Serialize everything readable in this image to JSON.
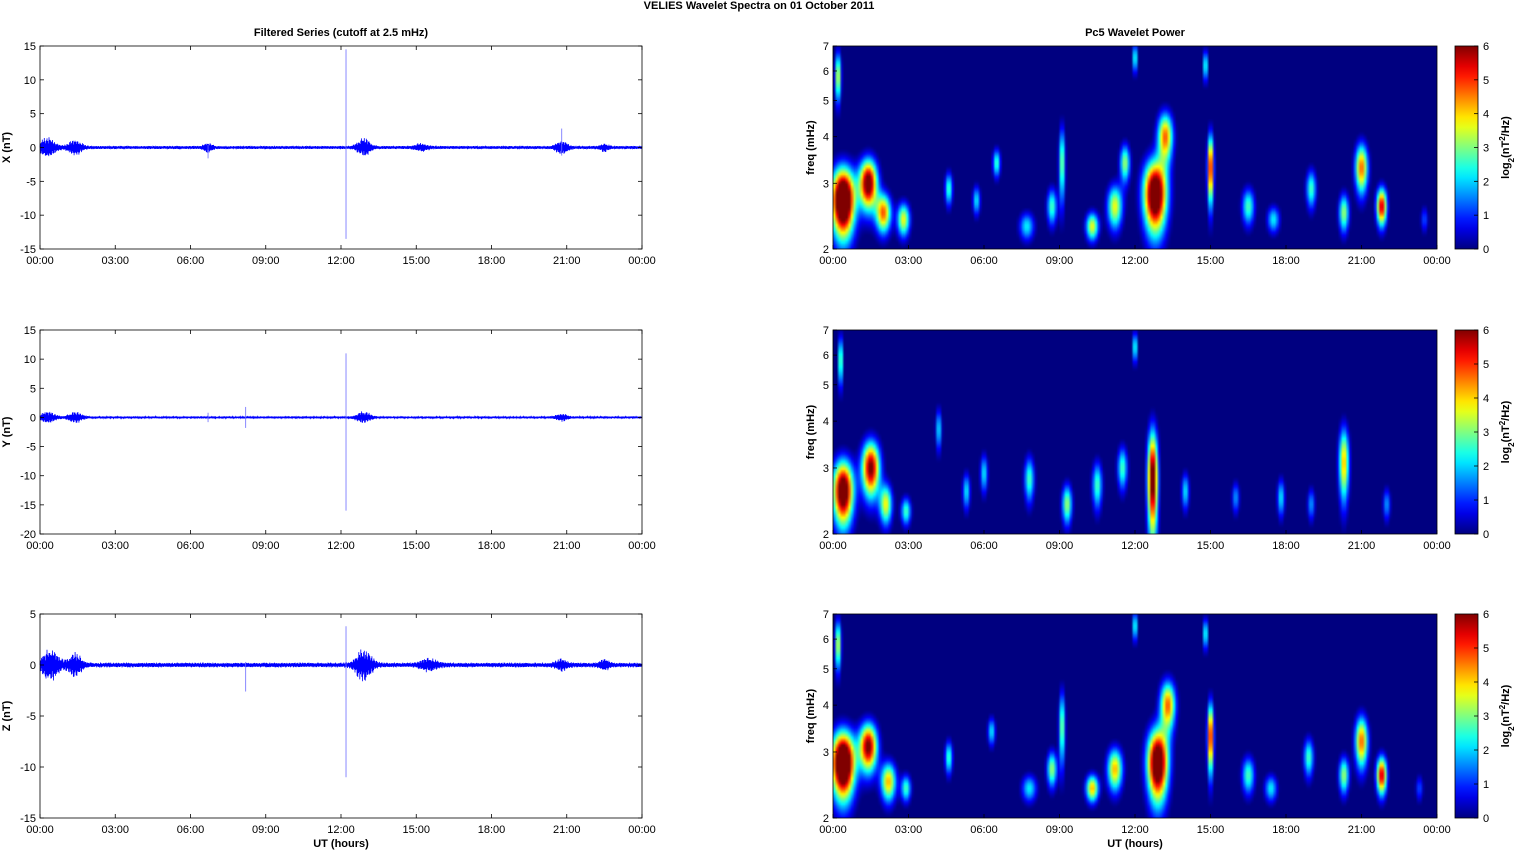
{
  "figure": {
    "suptitle": "VELIES Wavelet Spectra on 01 October   2011"
  },
  "chart_data": [
    {
      "type": "line",
      "title": "Filtered Series (cutoff at 2.5 mHz)",
      "ylabel": "X (nT)",
      "xlabel": "",
      "x_ticks": [
        "00:00",
        "03:00",
        "06:00",
        "09:00",
        "12:00",
        "15:00",
        "18:00",
        "21:00",
        "00:00"
      ],
      "xlim_hours": [
        0,
        24
      ],
      "ylim": [
        -15,
        15
      ],
      "y_ticks": [
        -15,
        -10,
        -5,
        0,
        5,
        10,
        15
      ],
      "line_color": "#0000ff",
      "envelope": {
        "base_amplitude": 0.25,
        "wave_packets": [
          {
            "t": 0.3,
            "amp": 1.5,
            "width": 0.35
          },
          {
            "t": 1.4,
            "amp": 1.1,
            "width": 0.3
          },
          {
            "t": 6.7,
            "amp": 0.6,
            "width": 0.2
          },
          {
            "t": 12.9,
            "amp": 1.3,
            "width": 0.3
          },
          {
            "t": 15.2,
            "amp": 0.5,
            "width": 0.3
          },
          {
            "t": 20.8,
            "amp": 1.0,
            "width": 0.25
          },
          {
            "t": 22.5,
            "amp": 0.5,
            "width": 0.2
          }
        ],
        "spikes": [
          {
            "t": 12.2,
            "min": -13.5,
            "max": 14.5
          },
          {
            "t": 6.7,
            "min": -1.6,
            "max": 0.4
          },
          {
            "t": 20.8,
            "min": -1.2,
            "max": 2.8
          }
        ]
      }
    },
    {
      "type": "line",
      "title": "",
      "ylabel": "Y (nT)",
      "xlabel": "",
      "x_ticks": [
        "00:00",
        "03:00",
        "06:00",
        "09:00",
        "12:00",
        "15:00",
        "18:00",
        "21:00",
        "00:00"
      ],
      "xlim_hours": [
        0,
        24
      ],
      "ylim": [
        -20,
        15
      ],
      "y_ticks": [
        -20,
        -15,
        -10,
        -5,
        0,
        5,
        10,
        15
      ],
      "line_color": "#0000ff",
      "envelope": {
        "base_amplitude": 0.2,
        "wave_packets": [
          {
            "t": 0.3,
            "amp": 0.9,
            "width": 0.35
          },
          {
            "t": 1.4,
            "amp": 0.9,
            "width": 0.3
          },
          {
            "t": 12.9,
            "amp": 1.0,
            "width": 0.3
          },
          {
            "t": 20.8,
            "amp": 0.6,
            "width": 0.25
          }
        ],
        "spikes": [
          {
            "t": 12.2,
            "min": -16,
            "max": 11
          },
          {
            "t": 8.2,
            "min": -1.8,
            "max": 1.8
          },
          {
            "t": 6.7,
            "min": -0.8,
            "max": 0.8
          }
        ]
      }
    },
    {
      "type": "line",
      "title": "",
      "ylabel": "Z (nT)",
      "xlabel": "UT (hours)",
      "x_ticks": [
        "00:00",
        "03:00",
        "06:00",
        "09:00",
        "12:00",
        "15:00",
        "18:00",
        "21:00",
        "00:00"
      ],
      "xlim_hours": [
        0,
        24
      ],
      "ylim": [
        -15,
        5
      ],
      "y_ticks": [
        -15,
        -10,
        -5,
        0,
        5
      ],
      "line_color": "#0000ff",
      "envelope": {
        "base_amplitude": 0.25,
        "wave_packets": [
          {
            "t": 0.4,
            "amp": 1.5,
            "width": 0.4
          },
          {
            "t": 1.4,
            "amp": 1.1,
            "width": 0.3
          },
          {
            "t": 12.9,
            "amp": 1.6,
            "width": 0.35
          },
          {
            "t": 15.5,
            "amp": 0.5,
            "width": 0.4
          },
          {
            "t": 20.8,
            "amp": 0.5,
            "width": 0.25
          },
          {
            "t": 22.5,
            "amp": 0.5,
            "width": 0.2
          }
        ],
        "spikes": [
          {
            "t": 12.2,
            "min": -11,
            "max": 3.8
          },
          {
            "t": 8.2,
            "min": -2.6,
            "max": 0.3
          }
        ]
      }
    },
    {
      "type": "heatmap",
      "title": "Pc5 Wavelet Power",
      "ylabel": "freq (mHz)",
      "xlabel": "",
      "x_ticks": [
        "00:00",
        "03:00",
        "06:00",
        "09:00",
        "12:00",
        "15:00",
        "18:00",
        "21:00",
        "00:00"
      ],
      "xlim_hours": [
        0,
        24
      ],
      "y_scale": "log",
      "ylim": [
        2,
        7
      ],
      "y_ticks": [
        2,
        3,
        4,
        5,
        6,
        7
      ],
      "colorbar": {
        "label": "log2(nT2/Hz)",
        "range": [
          0,
          6
        ],
        "ticks": [
          0,
          1,
          2,
          3,
          4,
          5,
          6
        ],
        "colormap": "jet"
      },
      "blobs": [
        {
          "t": 0.4,
          "f": 2.7,
          "st": 0.45,
          "sf": 0.55,
          "p": 9
        },
        {
          "t": 1.4,
          "f": 3.0,
          "st": 0.35,
          "sf": 0.45,
          "p": 7
        },
        {
          "t": 2.0,
          "f": 2.5,
          "st": 0.3,
          "sf": 0.3,
          "p": 5
        },
        {
          "t": 2.8,
          "f": 2.4,
          "st": 0.25,
          "sf": 0.25,
          "p": 4
        },
        {
          "t": 0.2,
          "f": 5.8,
          "st": 0.12,
          "sf": 0.9,
          "p": 4
        },
        {
          "t": 4.6,
          "f": 2.9,
          "st": 0.15,
          "sf": 0.3,
          "p": 3
        },
        {
          "t": 5.7,
          "f": 2.7,
          "st": 0.15,
          "sf": 0.25,
          "p": 2.5
        },
        {
          "t": 6.5,
          "f": 3.4,
          "st": 0.15,
          "sf": 0.3,
          "p": 3
        },
        {
          "t": 7.7,
          "f": 2.3,
          "st": 0.3,
          "sf": 0.2,
          "p": 2.5
        },
        {
          "t": 8.7,
          "f": 2.6,
          "st": 0.2,
          "sf": 0.3,
          "p": 3
        },
        {
          "t": 9.1,
          "f": 3.4,
          "st": 0.12,
          "sf": 0.8,
          "p": 3.5
        },
        {
          "t": 10.3,
          "f": 2.3,
          "st": 0.25,
          "sf": 0.2,
          "p": 4
        },
        {
          "t": 11.2,
          "f": 2.6,
          "st": 0.3,
          "sf": 0.35,
          "p": 4
        },
        {
          "t": 11.6,
          "f": 3.4,
          "st": 0.2,
          "sf": 0.4,
          "p": 3.5
        },
        {
          "t": 12.8,
          "f": 2.8,
          "st": 0.45,
          "sf": 0.6,
          "p": 8
        },
        {
          "t": 13.2,
          "f": 4.0,
          "st": 0.3,
          "sf": 0.6,
          "p": 5
        },
        {
          "t": 15.0,
          "f": 3.3,
          "st": 0.12,
          "sf": 0.7,
          "p": 6
        },
        {
          "t": 16.5,
          "f": 2.6,
          "st": 0.25,
          "sf": 0.3,
          "p": 3
        },
        {
          "t": 17.5,
          "f": 2.4,
          "st": 0.25,
          "sf": 0.2,
          "p": 2.5
        },
        {
          "t": 19.0,
          "f": 2.9,
          "st": 0.2,
          "sf": 0.35,
          "p": 3
        },
        {
          "t": 20.3,
          "f": 2.5,
          "st": 0.2,
          "sf": 0.3,
          "p": 3.5
        },
        {
          "t": 21.0,
          "f": 3.3,
          "st": 0.25,
          "sf": 0.5,
          "p": 5
        },
        {
          "t": 21.8,
          "f": 2.6,
          "st": 0.2,
          "sf": 0.3,
          "p": 6
        },
        {
          "t": 23.5,
          "f": 2.4,
          "st": 0.15,
          "sf": 0.2,
          "p": 1.5
        },
        {
          "t": 12.0,
          "f": 6.5,
          "st": 0.1,
          "sf": 0.6,
          "p": 3
        },
        {
          "t": 14.8,
          "f": 6.2,
          "st": 0.1,
          "sf": 0.6,
          "p": 3
        }
      ]
    },
    {
      "type": "heatmap",
      "title": "",
      "ylabel": "freq (mHz)",
      "xlabel": "",
      "x_ticks": [
        "00:00",
        "03:00",
        "06:00",
        "09:00",
        "12:00",
        "15:00",
        "18:00",
        "21:00",
        "00:00"
      ],
      "xlim_hours": [
        0,
        24
      ],
      "y_scale": "log",
      "ylim": [
        2,
        7
      ],
      "y_ticks": [
        2,
        3,
        4,
        5,
        6,
        7
      ],
      "colorbar": {
        "label": "log2(nT2/Hz)",
        "range": [
          0,
          6
        ],
        "ticks": [
          0,
          1,
          2,
          3,
          4,
          5,
          6
        ],
        "colormap": "jet"
      },
      "blobs": [
        {
          "t": 0.4,
          "f": 2.6,
          "st": 0.4,
          "sf": 0.5,
          "p": 7.5
        },
        {
          "t": 1.5,
          "f": 3.0,
          "st": 0.35,
          "sf": 0.5,
          "p": 6.5
        },
        {
          "t": 2.1,
          "f": 2.4,
          "st": 0.25,
          "sf": 0.3,
          "p": 4
        },
        {
          "t": 2.9,
          "f": 2.3,
          "st": 0.2,
          "sf": 0.2,
          "p": 3
        },
        {
          "t": 4.2,
          "f": 3.8,
          "st": 0.12,
          "sf": 0.5,
          "p": 2.5
        },
        {
          "t": 5.3,
          "f": 2.6,
          "st": 0.15,
          "sf": 0.3,
          "p": 2.5
        },
        {
          "t": 6.0,
          "f": 2.9,
          "st": 0.15,
          "sf": 0.35,
          "p": 2.5
        },
        {
          "t": 7.8,
          "f": 2.8,
          "st": 0.2,
          "sf": 0.4,
          "p": 3
        },
        {
          "t": 9.3,
          "f": 2.4,
          "st": 0.2,
          "sf": 0.3,
          "p": 3.5
        },
        {
          "t": 10.5,
          "f": 2.7,
          "st": 0.2,
          "sf": 0.4,
          "p": 3
        },
        {
          "t": 11.5,
          "f": 3.0,
          "st": 0.2,
          "sf": 0.4,
          "p": 3
        },
        {
          "t": 12.7,
          "f": 2.8,
          "st": 0.2,
          "sf": 0.9,
          "p": 7
        },
        {
          "t": 14.0,
          "f": 2.6,
          "st": 0.15,
          "sf": 0.3,
          "p": 2.5
        },
        {
          "t": 16.0,
          "f": 2.5,
          "st": 0.15,
          "sf": 0.25,
          "p": 2
        },
        {
          "t": 17.8,
          "f": 2.5,
          "st": 0.15,
          "sf": 0.3,
          "p": 2.5
        },
        {
          "t": 19.0,
          "f": 2.4,
          "st": 0.15,
          "sf": 0.25,
          "p": 2
        },
        {
          "t": 20.3,
          "f": 3.1,
          "st": 0.2,
          "sf": 0.7,
          "p": 4.5
        },
        {
          "t": 22.0,
          "f": 2.4,
          "st": 0.15,
          "sf": 0.25,
          "p": 2
        },
        {
          "t": 0.3,
          "f": 5.8,
          "st": 0.1,
          "sf": 0.9,
          "p": 3.5
        },
        {
          "t": 12.0,
          "f": 6.3,
          "st": 0.1,
          "sf": 0.6,
          "p": 3
        }
      ]
    },
    {
      "type": "heatmap",
      "title": "",
      "ylabel": "freq (mHz)",
      "xlabel": "UT (hours)",
      "x_ticks": [
        "00:00",
        "03:00",
        "06:00",
        "09:00",
        "12:00",
        "15:00",
        "18:00",
        "21:00",
        "00:00"
      ],
      "xlim_hours": [
        0,
        24
      ],
      "y_scale": "log",
      "ylim": [
        2,
        7
      ],
      "y_ticks": [
        2,
        3,
        4,
        5,
        6,
        7
      ],
      "colorbar": {
        "label": "log2(nT2/Hz)",
        "range": [
          0,
          6
        ],
        "ticks": [
          0,
          1,
          2,
          3,
          4,
          5,
          6
        ],
        "colormap": "jet"
      },
      "blobs": [
        {
          "t": 0.4,
          "f": 2.8,
          "st": 0.45,
          "sf": 0.55,
          "p": 9
        },
        {
          "t": 1.4,
          "f": 3.1,
          "st": 0.35,
          "sf": 0.45,
          "p": 6.5
        },
        {
          "t": 2.2,
          "f": 2.5,
          "st": 0.3,
          "sf": 0.3,
          "p": 4.5
        },
        {
          "t": 2.9,
          "f": 2.4,
          "st": 0.2,
          "sf": 0.2,
          "p": 3
        },
        {
          "t": 0.2,
          "f": 5.8,
          "st": 0.12,
          "sf": 0.9,
          "p": 4
        },
        {
          "t": 4.6,
          "f": 2.9,
          "st": 0.15,
          "sf": 0.3,
          "p": 3
        },
        {
          "t": 6.3,
          "f": 3.4,
          "st": 0.15,
          "sf": 0.3,
          "p": 2.5
        },
        {
          "t": 7.8,
          "f": 2.4,
          "st": 0.3,
          "sf": 0.2,
          "p": 2.5
        },
        {
          "t": 8.7,
          "f": 2.7,
          "st": 0.2,
          "sf": 0.3,
          "p": 3.5
        },
        {
          "t": 9.1,
          "f": 3.5,
          "st": 0.12,
          "sf": 0.8,
          "p": 3.5
        },
        {
          "t": 10.3,
          "f": 2.4,
          "st": 0.25,
          "sf": 0.2,
          "p": 4.5
        },
        {
          "t": 11.2,
          "f": 2.7,
          "st": 0.3,
          "sf": 0.35,
          "p": 4.5
        },
        {
          "t": 12.9,
          "f": 2.8,
          "st": 0.4,
          "sf": 0.6,
          "p": 8
        },
        {
          "t": 13.3,
          "f": 4.0,
          "st": 0.3,
          "sf": 0.6,
          "p": 5
        },
        {
          "t": 15.0,
          "f": 3.3,
          "st": 0.12,
          "sf": 0.7,
          "p": 6
        },
        {
          "t": 16.5,
          "f": 2.6,
          "st": 0.25,
          "sf": 0.3,
          "p": 3
        },
        {
          "t": 17.4,
          "f": 2.4,
          "st": 0.25,
          "sf": 0.2,
          "p": 2.5
        },
        {
          "t": 18.9,
          "f": 2.9,
          "st": 0.2,
          "sf": 0.35,
          "p": 3
        },
        {
          "t": 20.3,
          "f": 2.6,
          "st": 0.2,
          "sf": 0.3,
          "p": 3.5
        },
        {
          "t": 21.0,
          "f": 3.2,
          "st": 0.25,
          "sf": 0.5,
          "p": 5
        },
        {
          "t": 21.8,
          "f": 2.6,
          "st": 0.2,
          "sf": 0.3,
          "p": 6
        },
        {
          "t": 23.3,
          "f": 2.4,
          "st": 0.15,
          "sf": 0.2,
          "p": 1.5
        },
        {
          "t": 12.0,
          "f": 6.5,
          "st": 0.1,
          "sf": 0.6,
          "p": 3
        },
        {
          "t": 14.8,
          "f": 6.2,
          "st": 0.1,
          "sf": 0.6,
          "p": 3
        }
      ]
    }
  ]
}
